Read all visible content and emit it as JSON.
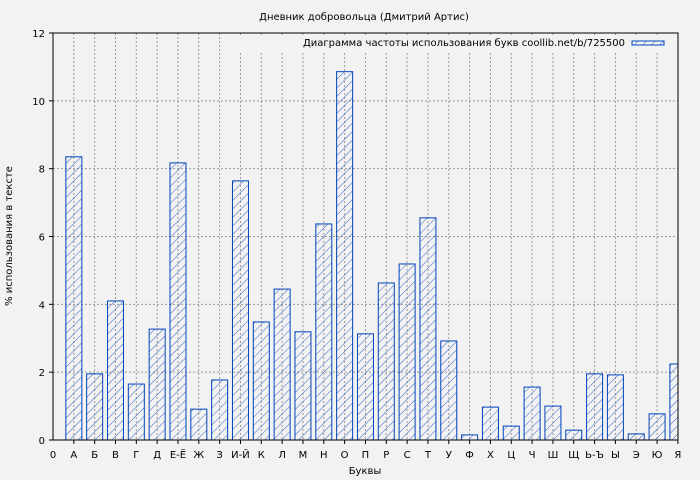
{
  "chart_data": {
    "type": "bar",
    "title": "Дневник добровольца (Дмитрий Артис)",
    "xlabel": "Буквы",
    "ylabel": "% использования в тексте",
    "ylim": [
      0,
      12
    ],
    "yticks": [
      "0",
      "2",
      "4",
      "6",
      "8",
      "10",
      "12"
    ],
    "x_origin_label": "0",
    "legend": {
      "label": "Диаграмма частоты использования букв coollib.net/b/725500",
      "placement": "top-right"
    },
    "grid": true,
    "bar_color": "#0044bb",
    "categories": [
      "А",
      "Б",
      "В",
      "Г",
      "Д",
      "Е-Ё",
      "Ж",
      "З",
      "И-Й",
      "К",
      "Л",
      "М",
      "Н",
      "О",
      "П",
      "Р",
      "С",
      "Т",
      "У",
      "Ф",
      "Х",
      "Ц",
      "Ч",
      "Ш",
      "Щ",
      "Ь-Ъ",
      "Ы",
      "Э",
      "Ю",
      "Я"
    ],
    "values": [
      8.35,
      1.95,
      4.1,
      1.65,
      3.27,
      8.17,
      0.91,
      1.77,
      7.64,
      3.48,
      4.45,
      3.19,
      6.37,
      10.86,
      3.13,
      4.63,
      5.19,
      6.55,
      2.92,
      0.15,
      0.97,
      0.41,
      1.56,
      1.0,
      0.29,
      1.95,
      1.92,
      0.18,
      0.77,
      2.24
    ]
  }
}
